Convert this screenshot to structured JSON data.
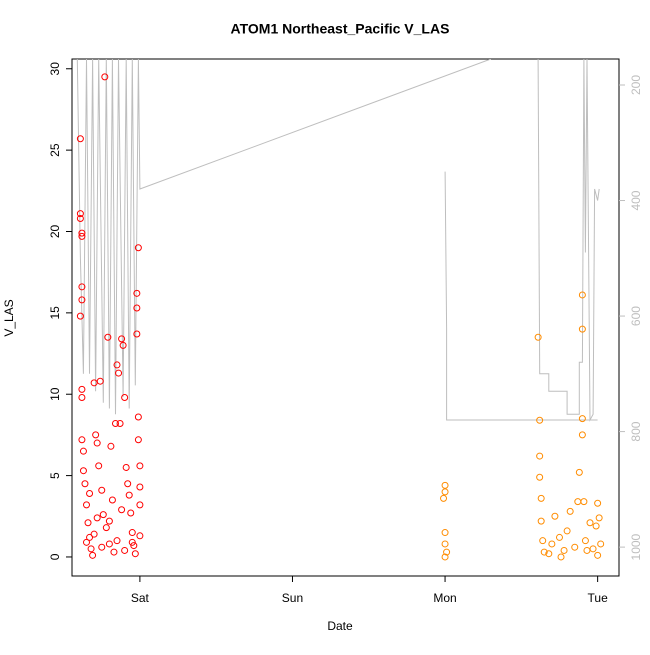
{
  "chart_data": {
    "type": "scatter",
    "title": "ATOM1 Northeast_Pacific V_LAS",
    "xlabel": "Date",
    "ylabel": "V_LAS",
    "xlim": [
      -0.445,
      3.14
    ],
    "xticks": [
      {
        "value": 0,
        "label": "Sat"
      },
      {
        "value": 1,
        "label": "Sun"
      },
      {
        "value": 2,
        "label": "Mon"
      },
      {
        "value": 3,
        "label": "Tue"
      }
    ],
    "ylim": [
      -1.17,
      30.6
    ],
    "yticks": [
      0,
      5,
      10,
      15,
      20,
      25,
      30
    ],
    "y2lim": [
      1050,
      155
    ],
    "y2ticks": [
      200,
      400,
      600,
      800,
      1000
    ],
    "y2color": "#bebebe",
    "series": [
      {
        "color": "#ff0000",
        "x": [
          -0.39,
          -0.39,
          -0.39,
          -0.38,
          -0.38,
          -0.38,
          -0.38,
          -0.39,
          -0.38,
          -0.38,
          -0.38,
          -0.37,
          -0.37,
          -0.36,
          -0.35,
          -0.34,
          -0.33,
          -0.32,
          -0.31,
          -0.3,
          -0.29,
          -0.28,
          -0.27,
          -0.26,
          -0.25,
          -0.24,
          -0.23,
          -0.22,
          -0.21,
          -0.2,
          -0.19,
          -0.18,
          -0.17,
          -0.16,
          -0.15,
          -0.14,
          -0.13,
          -0.12,
          -0.11,
          -0.1,
          -0.09,
          -0.08,
          -0.07,
          -0.06,
          -0.05,
          -0.04,
          -0.03,
          -0.02,
          -0.02,
          -0.02,
          -0.01,
          -0.01,
          -0.01,
          0.0,
          0.0,
          0.0,
          0.0,
          -0.35,
          -0.3,
          -0.25,
          -0.2,
          -0.15,
          -0.1,
          -0.12,
          -0.28,
          -0.33,
          -0.05
        ],
        "values": [
          25.7,
          21.1,
          20.8,
          19.9,
          19.7,
          16.6,
          15.8,
          14.8,
          10.3,
          9.8,
          7.2,
          6.5,
          5.3,
          4.5,
          3.2,
          2.1,
          1.2,
          0.5,
          0.1,
          10.7,
          7.5,
          7.0,
          5.6,
          10.8,
          4.1,
          2.6,
          29.5,
          1.8,
          13.5,
          0.8,
          6.8,
          3.5,
          0.3,
          8.2,
          11.8,
          11.3,
          8.2,
          13.4,
          13.0,
          9.8,
          5.5,
          4.5,
          3.8,
          2.7,
          1.5,
          0.7,
          0.2,
          16.2,
          15.3,
          13.7,
          19.0,
          8.6,
          7.2,
          5.6,
          4.3,
          3.2,
          1.3,
          0.9,
          1.4,
          0.6,
          2.2,
          1.0,
          0.4,
          2.9,
          2.4,
          3.9,
          0.9
        ]
      },
      {
        "color": "#ff8c00",
        "x": [
          2.0,
          2.0,
          1.99,
          2.0,
          2.0,
          2.01,
          2.0,
          2.61,
          2.62,
          2.62,
          2.62,
          2.63,
          2.63,
          2.64,
          2.65,
          2.7,
          2.72,
          2.75,
          2.78,
          2.8,
          2.82,
          2.85,
          2.87,
          2.88,
          2.9,
          2.9,
          2.9,
          2.9,
          2.91,
          2.92,
          2.95,
          2.97,
          2.99,
          3.0,
          3.01,
          3.02,
          3.0,
          2.68,
          2.93,
          2.76
        ],
        "values": [
          4.4,
          4.0,
          3.6,
          1.5,
          0.8,
          0.3,
          0.0,
          13.5,
          8.4,
          6.2,
          4.9,
          3.6,
          2.2,
          1.0,
          0.3,
          0.8,
          2.5,
          1.2,
          0.4,
          1.6,
          2.8,
          0.6,
          3.4,
          5.2,
          16.1,
          14.0,
          8.5,
          7.5,
          3.4,
          1.0,
          2.1,
          0.5,
          1.9,
          3.3,
          2.4,
          0.8,
          0.1,
          0.2,
          0.4,
          0.0
        ]
      },
      {
        "color": "#bebebe",
        "type": "line",
        "axis": "y2",
        "x": [
          -0.41,
          -0.39,
          -0.37,
          -0.35,
          -0.33,
          -0.31,
          -0.29,
          -0.27,
          -0.24,
          -0.22,
          -0.2,
          -0.18,
          -0.16,
          -0.14,
          -0.11,
          -0.09,
          -0.07,
          -0.05,
          -0.03,
          -0.01,
          0.0,
          2.3,
          null,
          2.0,
          2.01,
          2.01,
          3.0,
          null,
          2.61,
          2.62,
          2.68,
          2.68,
          2.8,
          2.8,
          2.88,
          2.88,
          2.9,
          2.91,
          2.92,
          2.93,
          2.95,
          2.97,
          2.98,
          3.0,
          3.01
        ],
        "values": [
          155,
          500,
          700,
          155,
          700,
          155,
          730,
          155,
          750,
          155,
          760,
          155,
          770,
          155,
          740,
          155,
          760,
          155,
          720,
          155,
          380,
          155,
          null,
          350,
          620,
          780,
          780,
          null,
          155,
          700,
          700,
          730,
          730,
          770,
          770,
          680,
          680,
          155,
          490,
          155,
          780,
          770,
          380,
          400,
          380
        ]
      }
    ]
  }
}
